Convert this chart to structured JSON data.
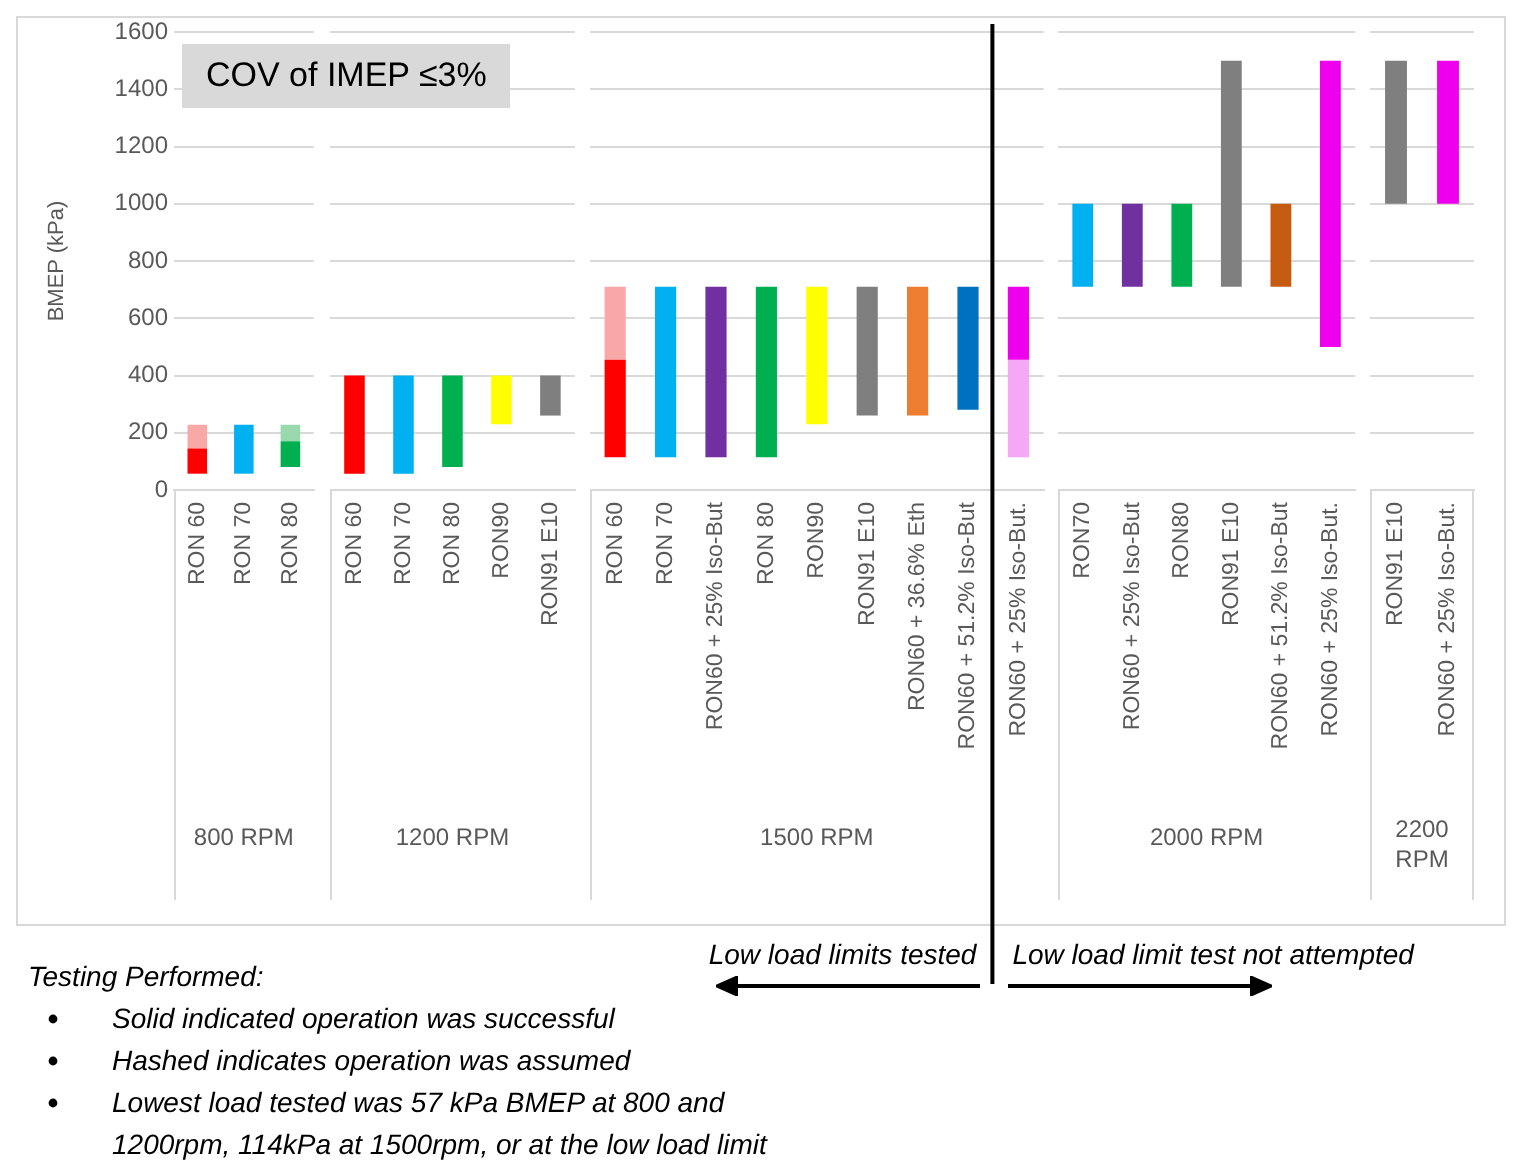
{
  "chart_data": [
    {
      "type": "bar",
      "ylabel": "BMEP (kPa)",
      "xlabel": "800 RPM",
      "categories": [
        "RON 60",
        "RON 70",
        "RON 80"
      ],
      "series": [
        {
          "base": [
            57,
            57,
            80
          ],
          "values": [
            88,
            171,
            90
          ],
          "colors": [
            "#ff0000",
            "#00b0f0",
            "#00b050"
          ]
        },
        {
          "base": [
            145,
            null,
            170
          ],
          "values": [
            83,
            null,
            58
          ],
          "colors": [
            "#f9a8a8",
            null,
            "#9ad8ae"
          ]
        }
      ],
      "ylim": [
        0,
        1600
      ],
      "yticks": [
        0,
        200,
        400,
        600,
        800,
        1000,
        1200,
        1400,
        1600
      ],
      "grid": "y",
      "annotations": [
        "COV of IMEP ≤3%",
        "Testing Performed:",
        "Solid indicated operation was successful",
        "Hashed indicates operation was assumed",
        "Lowest load tested was 57 kPa BMEP at 800 and 1200rpm, 114kPa at 1500rpm, or at the low load limit"
      ]
    },
    {
      "type": "bar",
      "xlabel": "1200 RPM",
      "categories": [
        "RON 60",
        "RON 70",
        "RON 80",
        "RON90",
        "RON91 E10"
      ],
      "series": [
        {
          "base": [
            57,
            57,
            80,
            230,
            260
          ],
          "values": [
            343,
            343,
            320,
            170,
            140
          ],
          "colors": [
            "#ff0000",
            "#00b0f0",
            "#00b050",
            "#ffff00",
            "#7f7f7f"
          ]
        }
      ],
      "ylim": [
        0,
        1600
      ],
      "yticks": [
        0,
        200,
        400,
        600,
        800,
        1000,
        1200,
        1400,
        1600
      ],
      "grid": "y",
      "tick_labels": "x"
    },
    {
      "type": "bar",
      "xlabel": "1500 RPM",
      "categories": [
        "RON 60",
        "RON 70",
        "RON60 + 25% Iso-But",
        "RON 80",
        "RON90",
        "RON91 E10",
        "RON60 + 36.6% Eth",
        "RON60 + 51.2% Iso-But",
        "RON60 + 25% Iso-But."
      ],
      "series": [
        {
          "base": [
            114,
            114,
            114,
            114,
            230,
            260,
            260,
            280,
            455
          ],
          "values": [
            341,
            596,
            596,
            596,
            480,
            450,
            450,
            430,
            255
          ],
          "colors": [
            "#ff0000",
            "#00b0f0",
            "#7030a0",
            "#00b050",
            "#ffff00",
            "#7f7f7f",
            "#ed7d31",
            "#0070c0",
            "#ee00ee"
          ]
        },
        {
          "base": [
            455,
            null,
            null,
            null,
            null,
            null,
            null,
            null,
            114
          ],
          "values": [
            255,
            null,
            null,
            null,
            null,
            null,
            null,
            null,
            341
          ],
          "colors": [
            "#f9a8a8",
            null,
            null,
            null,
            null,
            null,
            null,
            null,
            "#f5a8f5"
          ]
        }
      ],
      "ylim": [
        0,
        1600
      ],
      "yticks": [
        0,
        200,
        400,
        600,
        800,
        1000,
        1200,
        1400,
        1600
      ],
      "grid": "y",
      "tick_labels": "x",
      "ref_lines": [
        {
          "axis": "x",
          "value": "RON60 + 25% Iso-But.",
          "color": "#000000"
        }
      ],
      "annotations": [
        "Low load limits tested",
        "Low load limit test not attempted"
      ]
    },
    {
      "type": "bar",
      "xlabel": "2000 RPM",
      "categories": [
        "RON70",
        "RON60 + 25% Iso-But",
        "RON80",
        "RON91 E10",
        "RON60 + 51.2% Iso-But",
        "RON60 + 25% Iso-But."
      ],
      "series": [
        {
          "base": [
            710,
            710,
            710,
            710,
            710,
            500
          ],
          "values": [
            290,
            290,
            290,
            790,
            290,
            1000
          ],
          "colors": [
            "#00b0f0",
            "#7030a0",
            "#00b050",
            "#7f7f7f",
            "#c55a11",
            "#ee00ee"
          ]
        }
      ],
      "ylim": [
        0,
        1600
      ],
      "yticks": [
        0,
        200,
        400,
        600,
        800,
        1000,
        1200,
        1400,
        1600
      ],
      "grid": "y",
      "tick_labels": "x"
    },
    {
      "type": "bar",
      "xlabel": "2200 RPM",
      "categories": [
        "RON91 E10",
        "RON60 + 25% Iso-But."
      ],
      "series": [
        {
          "base": [
            1000,
            1000
          ],
          "values": [
            500,
            500
          ],
          "colors": [
            "#7f7f7f",
            "#ee00ee"
          ]
        }
      ],
      "ylim": [
        0,
        1600
      ],
      "yticks": [
        0,
        200,
        400,
        600,
        800,
        1000,
        1200,
        1400,
        1600
      ],
      "grid": "y",
      "tick_labels": "x"
    }
  ]
}
